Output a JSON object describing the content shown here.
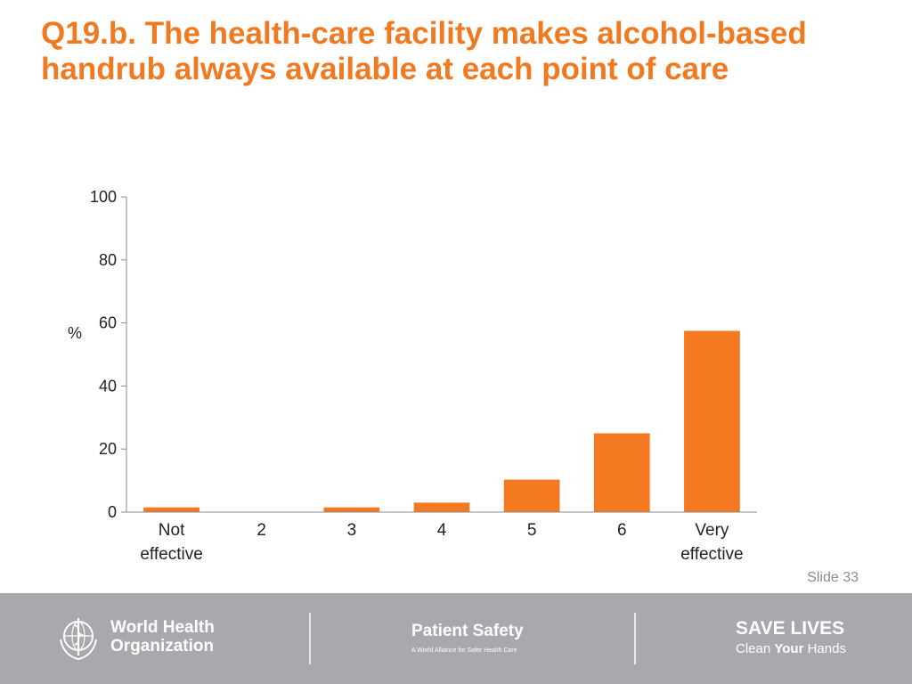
{
  "slide": {
    "title": "Q19.b. The health-care facility makes alcohol-based handrub always available at each point of care",
    "slide_number": "Slide 33"
  },
  "chart_data": {
    "type": "bar",
    "categories": [
      [
        "Not",
        "effective"
      ],
      [
        "2"
      ],
      [
        "3"
      ],
      [
        "4"
      ],
      [
        "5"
      ],
      [
        "6"
      ],
      [
        "Very",
        "effective"
      ]
    ],
    "values": [
      1.5,
      0,
      1.5,
      3,
      10.3,
      25,
      57.5
    ],
    "ylabel": "%",
    "ylim": [
      0,
      100
    ],
    "yticks": [
      0,
      20,
      40,
      60,
      80,
      100
    ],
    "bar_color": "#f47920",
    "grid": false
  },
  "footer": {
    "who_line1": "World Health",
    "who_line2": "Organization",
    "ps_title": "Patient Safety",
    "ps_subtitle": "A World Alliance for Safer Health Care",
    "sl_title": "SAVE LIVES",
    "sl_sub_part1": "Clean ",
    "sl_sub_bold": "Your",
    "sl_sub_part2": " Hands",
    "background": "#a7a9ac"
  }
}
